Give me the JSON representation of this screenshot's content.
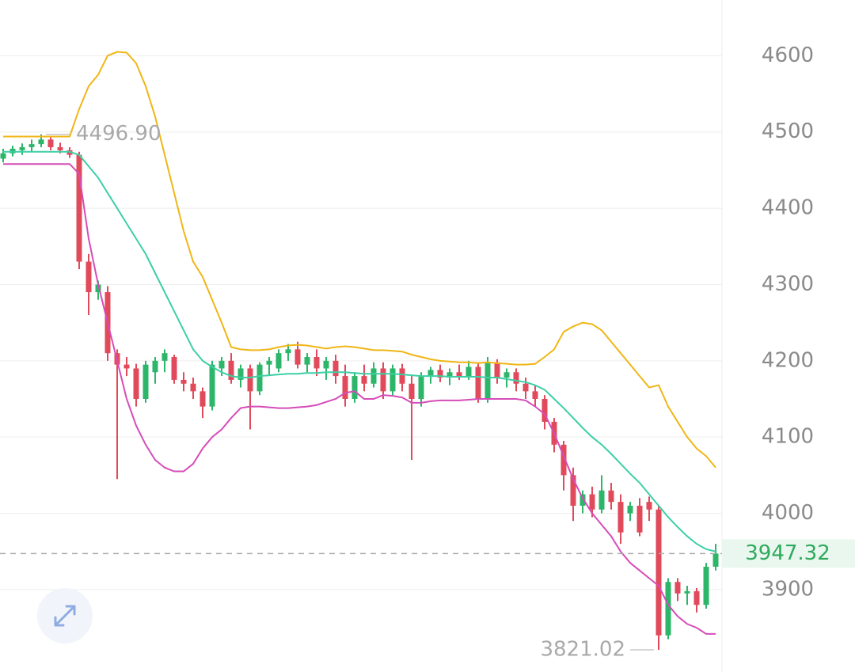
{
  "chart_data": {
    "type": "candlestick",
    "ylim": [
      3792,
      4673
    ],
    "yticks": [
      3900,
      4000,
      4100,
      4200,
      4300,
      4400,
      4500,
      4600
    ],
    "grid": true,
    "up_color": "#2db56a",
    "down_color": "#e04a5b",
    "open": [
      4465,
      4472,
      4476,
      4480,
      4484,
      4490,
      4480,
      4476,
      4470,
      4330,
      4290,
      4290,
      4210,
      4195,
      4190,
      4150,
      4185,
      4200,
      4205,
      4175,
      4170,
      4160,
      4140,
      4190,
      4200,
      4175,
      4190,
      4160,
      4195,
      4190,
      4210,
      4215,
      4195,
      4205,
      4190,
      4200,
      4180,
      4150,
      4180,
      4170,
      4190,
      4160,
      4190,
      4170,
      4150,
      4180,
      4188,
      4178,
      4185,
      4180,
      4192,
      4150,
      4198,
      4178,
      4185,
      4170,
      4160,
      4150,
      4120,
      4090,
      4050,
      4010,
      4025,
      4005,
      4030,
      4015,
      4000,
      4010,
      4015,
      4005,
      3840,
      3910,
      3895,
      3898,
      3880,
      3930
    ],
    "high": [
      4478,
      4482,
      4485,
      4490,
      4496.9,
      4494,
      4486,
      4480,
      4474,
      4340,
      4305,
      4298,
      4215,
      4205,
      4196,
      4200,
      4205,
      4215,
      4208,
      4185,
      4178,
      4165,
      4200,
      4205,
      4210,
      4195,
      4195,
      4198,
      4205,
      4215,
      4222,
      4225,
      4210,
      4215,
      4205,
      4208,
      4195,
      4185,
      4195,
      4198,
      4198,
      4195,
      4196,
      4180,
      4185,
      4192,
      4195,
      4190,
      4195,
      4200,
      4198,
      4205,
      4202,
      4190,
      4190,
      4178,
      4168,
      4155,
      4125,
      4095,
      4060,
      4030,
      4035,
      4050,
      4040,
      4025,
      4015,
      4020,
      4022,
      4010,
      3915,
      3915,
      3905,
      3902,
      3935,
      3960
    ],
    "low": [
      4460,
      4468,
      4470,
      4474,
      4480,
      4476,
      4472,
      4466,
      4320,
      4260,
      4280,
      4200,
      4045,
      4180,
      4140,
      4145,
      4170,
      4185,
      4170,
      4160,
      4150,
      4125,
      4135,
      4180,
      4170,
      4165,
      4110,
      4155,
      4180,
      4185,
      4200,
      4190,
      4185,
      4180,
      4175,
      4170,
      4140,
      4145,
      4160,
      4165,
      4150,
      4155,
      4160,
      4070,
      4140,
      4170,
      4172,
      4168,
      4175,
      4175,
      4145,
      4145,
      4170,
      4165,
      4160,
      4150,
      4140,
      4110,
      4080,
      4030,
      3990,
      4000,
      3995,
      4000,
      4005,
      3960,
      3990,
      3970,
      3990,
      3821.02,
      3835,
      3885,
      3880,
      3870,
      3875,
      3925
    ],
    "close": [
      4472,
      4478,
      4480,
      4484,
      4490,
      4480,
      4476,
      4470,
      4330,
      4290,
      4300,
      4210,
      4195,
      4190,
      4150,
      4195,
      4200,
      4210,
      4175,
      4170,
      4160,
      4140,
      4195,
      4200,
      4175,
      4190,
      4160,
      4195,
      4200,
      4210,
      4215,
      4195,
      4205,
      4190,
      4200,
      4180,
      4150,
      4180,
      4170,
      4190,
      4160,
      4190,
      4170,
      4150,
      4180,
      4188,
      4178,
      4185,
      4180,
      4192,
      4150,
      4198,
      4178,
      4185,
      4170,
      4160,
      4150,
      4120,
      4090,
      4050,
      4010,
      4025,
      4005,
      4030,
      4015,
      3975,
      4010,
      3975,
      4005,
      3840,
      3910,
      3895,
      3898,
      3880,
      3930,
      3947.32
    ],
    "overlays": [
      {
        "color": "#f0b616",
        "values": [
          4494,
          4494,
          4494,
          4494,
          4494,
          4494,
          4494,
          4494,
          4530,
          4560,
          4575,
          4600,
          4605,
          4604,
          4590,
          4560,
          4520,
          4470,
          4420,
          4370,
          4330,
          4310,
          4280,
          4250,
          4218,
          4215,
          4214,
          4214,
          4215,
          4218,
          4220,
          4221,
          4220,
          4218,
          4216,
          4218,
          4219,
          4218,
          4216,
          4214,
          4214,
          4213,
          4212,
          4208,
          4205,
          4202,
          4200,
          4199,
          4198,
          4198,
          4197,
          4198,
          4197,
          4196,
          4195,
          4195,
          4196,
          4205,
          4215,
          4238,
          4245,
          4250,
          4248,
          4240,
          4225,
          4210,
          4195,
          4180,
          4165,
          4168,
          4140,
          4120,
          4100,
          4085,
          4075,
          4060
        ]
      },
      {
        "color": "#3ccfa6",
        "values": [
          4474,
          4474,
          4474,
          4474,
          4474,
          4474,
          4474,
          4474,
          4470,
          4455,
          4440,
          4420,
          4400,
          4380,
          4360,
          4340,
          4315,
          4290,
          4265,
          4240,
          4215,
          4200,
          4192,
          4185,
          4180,
          4178,
          4178,
          4180,
          4181,
          4182,
          4183,
          4183,
          4184,
          4184,
          4185,
          4185,
          4185,
          4184,
          4183,
          4183,
          4183,
          4183,
          4182,
          4181,
          4180,
          4180,
          4180,
          4179,
          4179,
          4179,
          4179,
          4178,
          4178,
          4176,
          4174,
          4172,
          4168,
          4162,
          4150,
          4138,
          4125,
          4112,
          4100,
          4090,
          4078,
          4065,
          4052,
          4040,
          4025,
          4010,
          3995,
          3982,
          3970,
          3960,
          3953,
          3950
        ]
      },
      {
        "color": "#d64cb8",
        "values": [
          4458,
          4458,
          4458,
          4458,
          4458,
          4458,
          4458,
          4458,
          4445,
          4360,
          4300,
          4250,
          4200,
          4150,
          4115,
          4090,
          4070,
          4060,
          4055,
          4055,
          4065,
          4085,
          4100,
          4110,
          4125,
          4138,
          4140,
          4140,
          4139,
          4138,
          4138,
          4139,
          4140,
          4142,
          4146,
          4150,
          4158,
          4160,
          4150,
          4150,
          4155,
          4154,
          4152,
          4145,
          4145,
          4147,
          4148,
          4148,
          4148,
          4149,
          4150,
          4150,
          4150,
          4150,
          4150,
          4148,
          4140,
          4130,
          4105,
          4075,
          4045,
          4020,
          4000,
          3985,
          3970,
          3950,
          3935,
          3925,
          3915,
          3905,
          3880,
          3865,
          3855,
          3850,
          3842,
          3842
        ]
      }
    ],
    "annotations": [
      {
        "value": 4496.9,
        "label": "4496.90"
      },
      {
        "value": 3821.02,
        "label": "3821.02"
      }
    ]
  }
}
